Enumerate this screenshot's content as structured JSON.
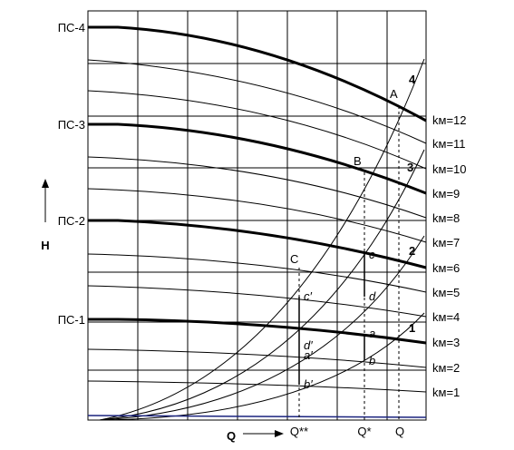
{
  "axes": {
    "y_label": "H",
    "x_label": "Q"
  },
  "levels": [
    "ПС-4",
    "ПС-3",
    "ПС-2",
    "ПС-1"
  ],
  "curve_labels": [
    "kм=12",
    "kм=11",
    "kм=10",
    "kм=9",
    "kм=8",
    "kм=7",
    "kм=6",
    "kм=5",
    "kм=4",
    "kм=3",
    "kм=2",
    "kм=1"
  ],
  "pipe_labels": [
    "4",
    "3",
    "2",
    "1"
  ],
  "points": {
    "A": "A",
    "B": "B",
    "C": "C",
    "a": "a",
    "b": "b",
    "c": "c",
    "d": "d",
    "a2": "a′",
    "b2": "b′",
    "c2": "c′",
    "d2": "d′"
  },
  "q_marks": [
    "Q**",
    "Q*",
    "Q"
  ]
}
